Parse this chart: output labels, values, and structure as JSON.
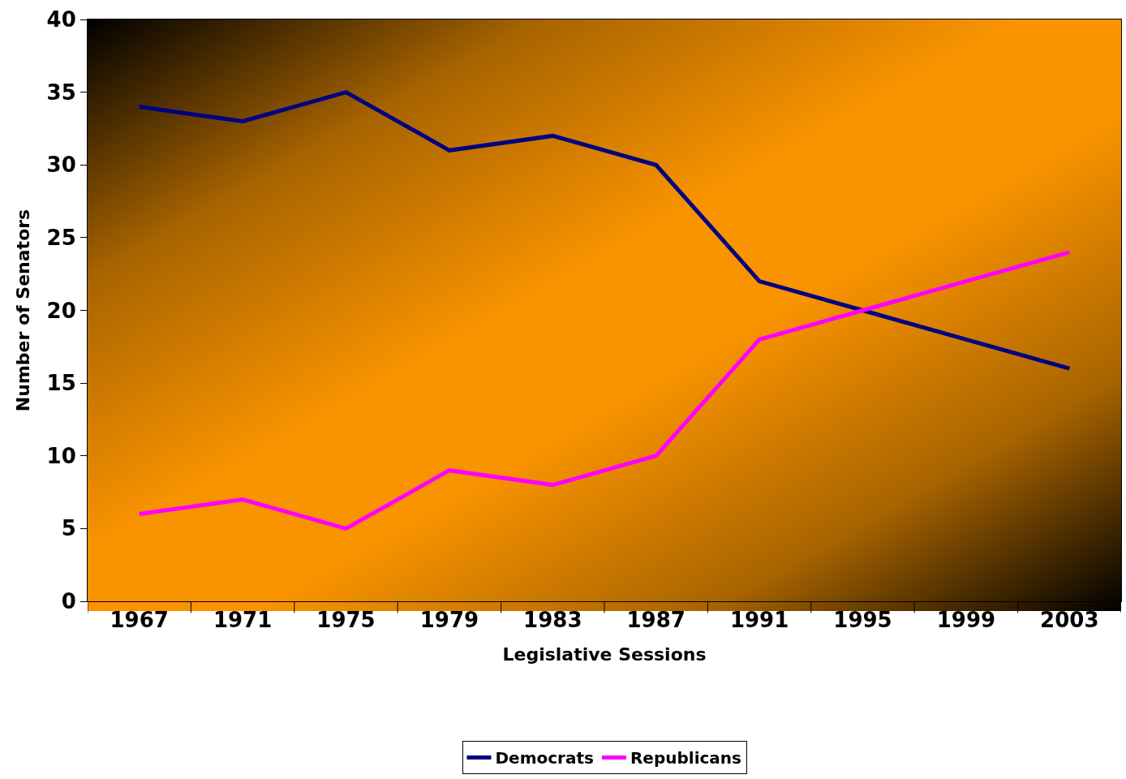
{
  "chart_data": {
    "type": "line",
    "xlabel": "Legislative Sessions",
    "ylabel": "Number of Senators",
    "categories": [
      "1967",
      "1971",
      "1975",
      "1979",
      "1983",
      "1987",
      "1991",
      "1995",
      "1999",
      "2003"
    ],
    "series": [
      {
        "name": "Democrats",
        "color": "#000080",
        "values": [
          34,
          33,
          35,
          31,
          32,
          30,
          22,
          20,
          18,
          16
        ]
      },
      {
        "name": "Republicans",
        "color": "#ff00ff",
        "values": [
          6,
          7,
          5,
          9,
          8,
          10,
          18,
          20,
          22,
          24
        ]
      }
    ],
    "ylim": [
      0,
      40
    ],
    "yticks": [
      0,
      5,
      10,
      15,
      20,
      25,
      30,
      35,
      40
    ],
    "grid": false,
    "legend": "bottom",
    "marker": "none",
    "line_style": "solid"
  }
}
